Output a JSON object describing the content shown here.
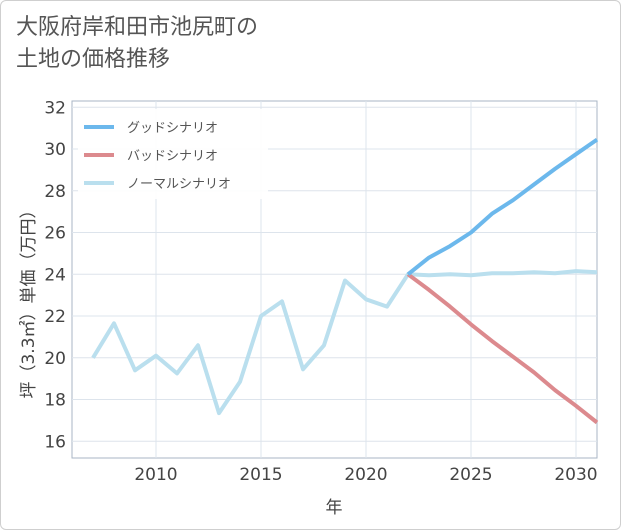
{
  "title": {
    "line1": "大阪府岸和田市池尻町の",
    "line2": "土地の価格推移"
  },
  "chart_data": {
    "type": "line",
    "xlabel": "年",
    "ylabel": "坪（3.3㎡）単価（万円）",
    "xlim": [
      2006,
      2031
    ],
    "ylim": [
      15.2,
      32.3
    ],
    "xticks": [
      2010,
      2015,
      2020,
      2025,
      2030
    ],
    "yticks": [
      16,
      18,
      20,
      22,
      24,
      26,
      28,
      30,
      32
    ],
    "grid": true,
    "legend_position": "top-left",
    "series": [
      {
        "name": "グッドシナリオ",
        "color": "#6cb8ec",
        "x": [
          2022,
          2023,
          2024,
          2025,
          2026,
          2027,
          2028,
          2029,
          2030,
          2031
        ],
        "values": [
          24.0,
          24.8,
          25.35,
          26.0,
          26.9,
          27.55,
          28.3,
          29.05,
          29.75,
          30.45
        ]
      },
      {
        "name": "バッドシナリオ",
        "color": "#dc8a8e",
        "x": [
          2022,
          2023,
          2024,
          2025,
          2026,
          2027,
          2028,
          2029,
          2030,
          2031
        ],
        "values": [
          24.0,
          23.25,
          22.45,
          21.6,
          20.8,
          20.05,
          19.3,
          18.45,
          17.7,
          16.9
        ]
      },
      {
        "name": "ノーマルシナリオ",
        "color": "#badfee",
        "x": [
          2007,
          2008,
          2009,
          2010,
          2011,
          2012,
          2013,
          2014,
          2015,
          2016,
          2017,
          2018,
          2019,
          2020,
          2021,
          2022,
          2023,
          2024,
          2025,
          2026,
          2027,
          2028,
          2029,
          2030,
          2031
        ],
        "values": [
          20.0,
          21.65,
          19.4,
          20.1,
          19.25,
          20.6,
          17.35,
          18.85,
          22.0,
          22.7,
          19.45,
          20.6,
          23.7,
          22.8,
          22.45,
          24.0,
          23.95,
          24.0,
          23.95,
          24.05,
          24.05,
          24.1,
          24.05,
          24.15,
          24.1
        ]
      }
    ]
  }
}
